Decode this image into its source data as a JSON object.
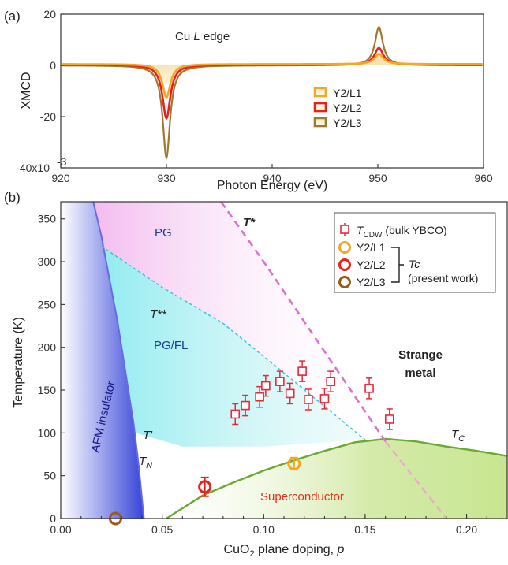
{
  "chart_data": [
    {
      "type": "line",
      "panel_label": "(a)",
      "xlabel": "Photon Energy (eV)",
      "ylabel": "XMCD",
      "xlim": [
        920,
        960
      ],
      "ylim": [
        -40,
        20
      ],
      "xticks": [
        "920",
        "930",
        "940",
        "950",
        "960"
      ],
      "yticks": [
        "-40x10",
        "-20",
        "0",
        "20"
      ],
      "ytick_exponent": "-3",
      "annotation": {
        "main": "Cu ",
        "italic": "L",
        "rest": " edge"
      },
      "legend": [
        "Y2/L1",
        "Y2/L2",
        "Y2/L3"
      ],
      "colors": {
        "Y2/L1": "#f5a623",
        "Y2/L2": "#e8211c",
        "Y2/L3": "#a0782f"
      },
      "series": [
        {
          "name": "Y2/L1",
          "baseline": 0.5,
          "peaks": [
            {
              "x": 930.0,
              "amp": -13,
              "w": 0.45
            },
            {
              "x": 950.1,
              "amp": 4,
              "w": 0.5
            }
          ]
        },
        {
          "name": "Y2/L2",
          "baseline": 0.3,
          "peaks": [
            {
              "x": 930.0,
              "amp": -21,
              "w": 0.45
            },
            {
              "x": 950.1,
              "amp": 6.5,
              "w": 0.5
            }
          ]
        },
        {
          "name": "Y2/L3",
          "baseline": 0.0,
          "peaks": [
            {
              "x": 930.0,
              "amp": -36,
              "w": 0.42
            },
            {
              "x": 950.1,
              "amp": 15,
              "w": 0.45
            }
          ]
        }
      ]
    },
    {
      "type": "scatter",
      "panel_label": "(b)",
      "xlabel": "CuO",
      "xlabel_sub": "2",
      "xlabel_rest": " plane doping, ",
      "xlabel_var": "p",
      "ylabel": "Temperature (K)",
      "xlim": [
        0.0,
        0.22
      ],
      "ylim": [
        0,
        370
      ],
      "xticks": [
        "0.00",
        "0.05",
        "0.10",
        "0.15",
        "0.20"
      ],
      "yticks": [
        "0",
        "50",
        "100",
        "150",
        "200",
        "250",
        "300",
        "350"
      ],
      "regions": {
        "pg": "PG",
        "pgfl": "PG/FL",
        "afm": "AFM insulator",
        "strange1": "Strange",
        "strange2": "metal",
        "sc": "Superconductor"
      },
      "line_labels": {
        "tstar": "T*",
        "tss": "T**",
        "tprime": "T′",
        "tn_main": "T",
        "tn_sub": "N",
        "tc_main": "T",
        "tc_sub": "C"
      },
      "tcdw": {
        "name_main": "T",
        "name_sub": "CDW",
        "name_rest": " (bulk YBCO)",
        "points": [
          {
            "x": 0.086,
            "y": 122,
            "err": 12
          },
          {
            "x": 0.091,
            "y": 132,
            "err": 12
          },
          {
            "x": 0.098,
            "y": 142,
            "err": 12
          },
          {
            "x": 0.101,
            "y": 155,
            "err": 12
          },
          {
            "x": 0.108,
            "y": 160,
            "err": 12
          },
          {
            "x": 0.113,
            "y": 146,
            "err": 12
          },
          {
            "x": 0.119,
            "y": 172,
            "err": 12
          },
          {
            "x": 0.122,
            "y": 139,
            "err": 12
          },
          {
            "x": 0.13,
            "y": 140,
            "err": 12
          },
          {
            "x": 0.133,
            "y": 160,
            "err": 12
          },
          {
            "x": 0.152,
            "y": 152,
            "err": 12
          },
          {
            "x": 0.162,
            "y": 116,
            "err": 12
          }
        ]
      },
      "present_work": {
        "tc_label": "Tc",
        "note": "(present work)",
        "points": [
          {
            "name": "Y2/L1",
            "x": 0.115,
            "y": 64,
            "err": 7
          },
          {
            "name": "Y2/L2",
            "x": 0.071,
            "y": 37,
            "err": 11
          },
          {
            "name": "Y2/L3",
            "x": 0.027,
            "y": 0,
            "err": 0
          }
        ]
      },
      "colors": {
        "tcdw": "#e8293a",
        "Y2/L1": "#f5a623",
        "Y2/L2": "#e8211c",
        "Y2/L3": "#9a5a1a",
        "tstar": "#e070d0",
        "tss": "#40c4d8",
        "tn": "#6a6ae0",
        "tc": "#6aaa30",
        "afm_text": "#1a1a8c",
        "pg_text": "#1a3a9c",
        "sc_text": "#ee2a1a"
      }
    }
  ]
}
